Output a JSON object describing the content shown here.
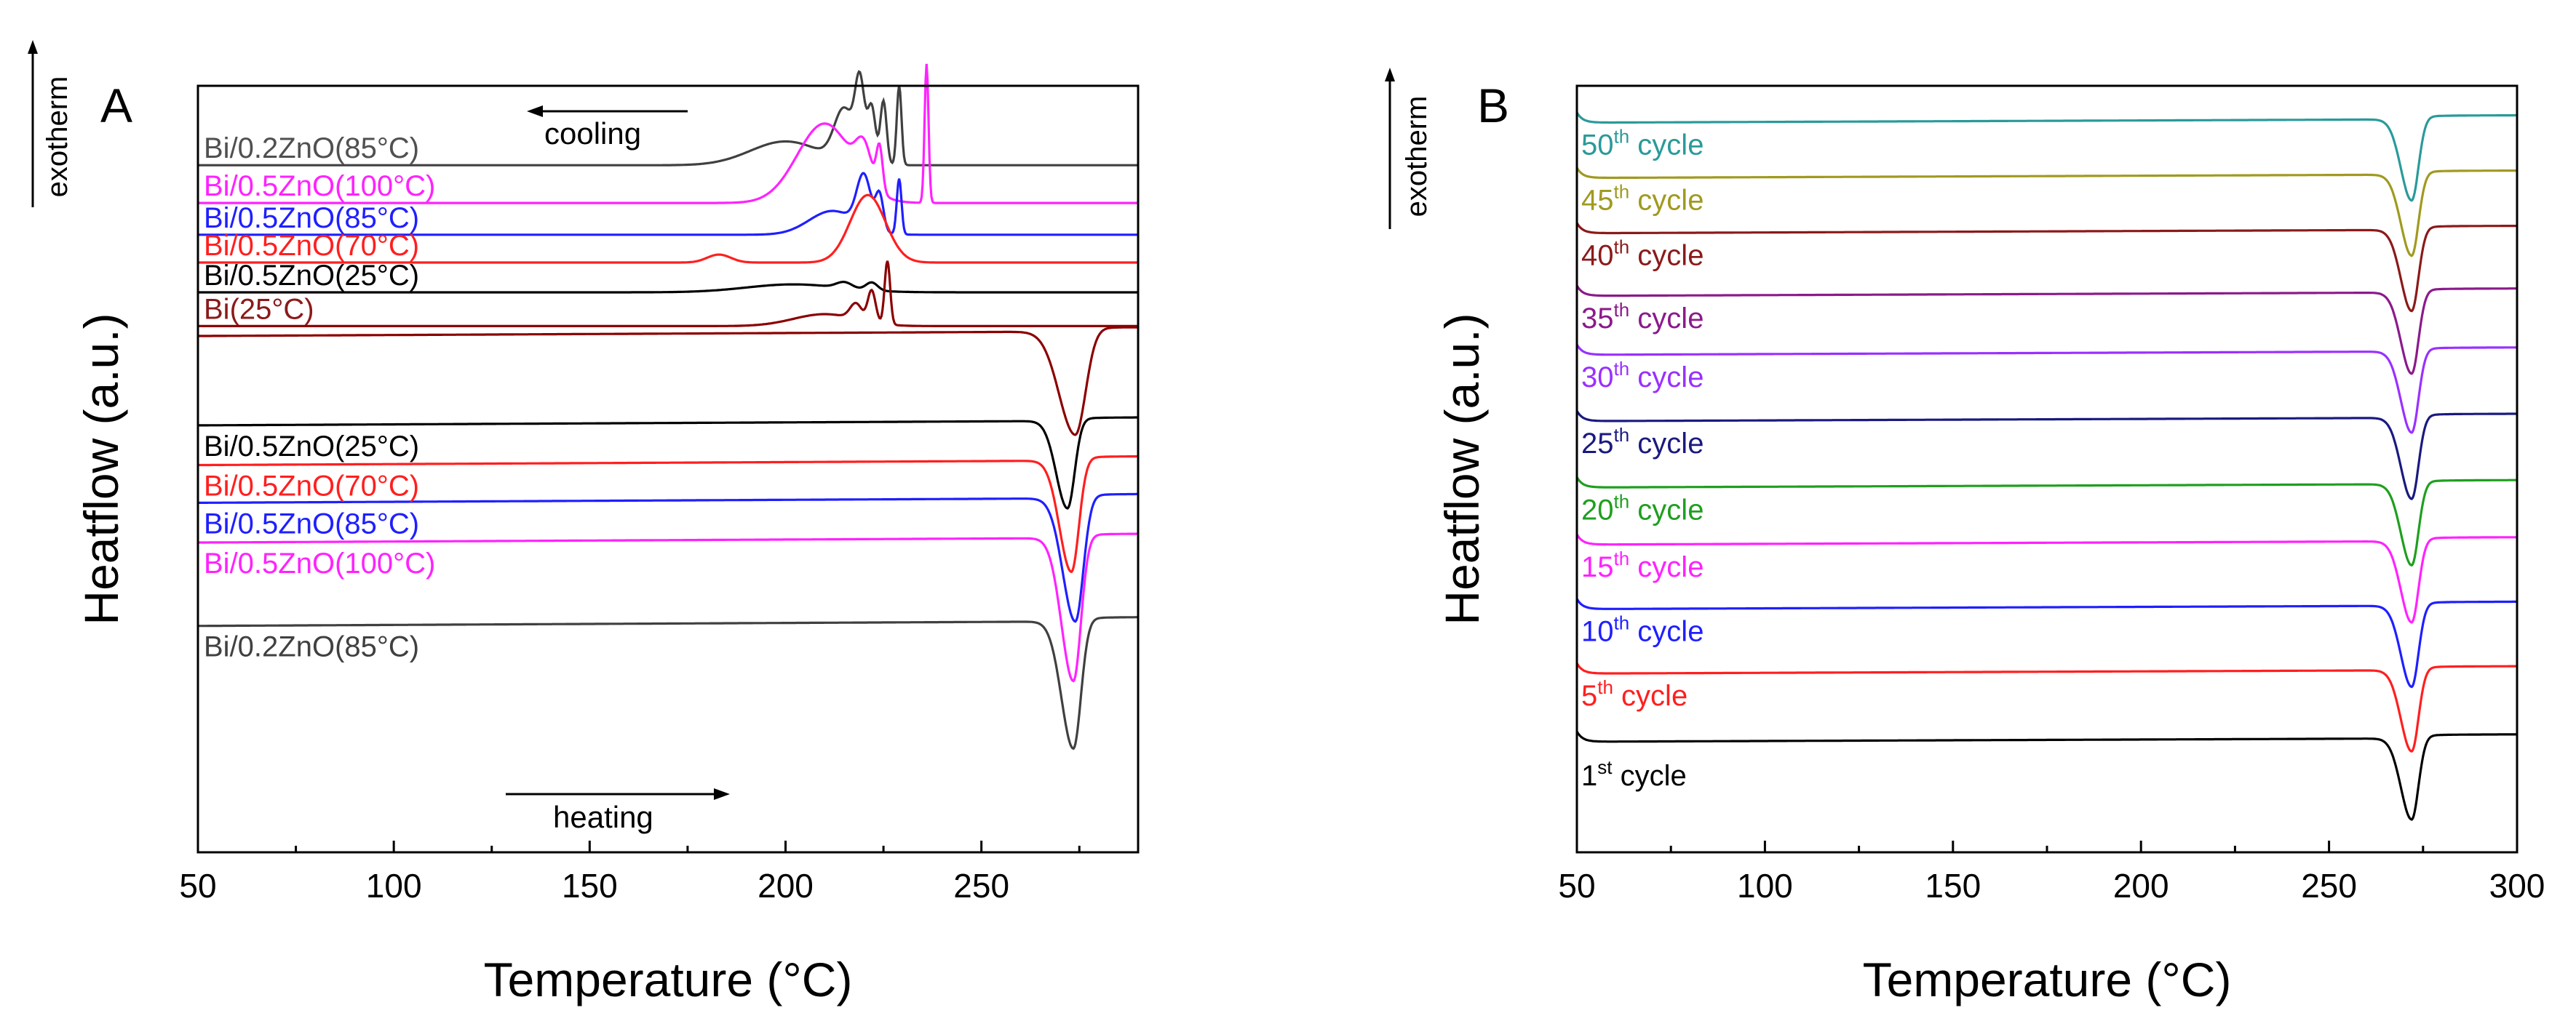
{
  "figure": {
    "panels": [
      "A",
      "B"
    ]
  },
  "chart_data": [
    {
      "type": "line",
      "panel_label": "A",
      "title": "",
      "xlabel": "Temperature (°C)",
      "ylabel": "Heatflow (a.u.)",
      "exotherm_label": "exotherm",
      "xlim": [
        50,
        290
      ],
      "xticks": [
        50,
        100,
        150,
        200,
        250
      ],
      "yticks": "none",
      "grid": false,
      "annotations": [
        {
          "text": "cooling",
          "arrow": "left"
        },
        {
          "text": "heating",
          "arrow": "right"
        }
      ],
      "cooling_curves": [
        {
          "name": "Bi/0.2ZnO(85°C)",
          "color": "#404040",
          "label_color": "#505050",
          "baseline": 6.8,
          "peaks": [
            [
              200,
              0.6,
              9
            ],
            [
              215,
              1.3,
              2.5
            ],
            [
              219,
              1.9,
              1.2
            ],
            [
              222,
              1.4,
              1
            ],
            [
              225,
              1.6,
              0.8
            ],
            [
              229,
              2.0,
              0.6
            ]
          ]
        },
        {
          "name": "Bi/0.5ZnO(100°C)",
          "color": "#ff22ff",
          "label_color": "#ff22ff",
          "baseline": 5.85,
          "peaks": [
            [
              210,
              2.0,
              7
            ],
            [
              220,
              0.9,
              2
            ],
            [
              224,
              1.1,
              0.8
            ],
            [
              236,
              3.5,
              0.5
            ]
          ]
        },
        {
          "name": "Bi/0.5ZnO(85°C)",
          "color": "#1f1fff",
          "label_color": "#1f1fff",
          "baseline": 5.05,
          "peaks": [
            [
              212,
              0.6,
              6
            ],
            [
              220,
              1.3,
              1.8
            ],
            [
              224,
              0.9,
              1
            ],
            [
              229,
              1.4,
              0.6
            ]
          ]
        },
        {
          "name": "Bi/0.5ZnO(70°C)",
          "color": "#ff1f1f",
          "label_color": "#ff1f1f",
          "baseline": 4.35,
          "peaks": [
            [
              183,
              0.2,
              3
            ],
            [
              221,
              1.7,
              4.5
            ]
          ]
        },
        {
          "name": "Bi/0.5ZnO(25°C)",
          "color": "#000000",
          "label_color": "#000000",
          "baseline": 3.6,
          "peaks": [
            [
              202,
              0.2,
              12
            ],
            [
              215,
              0.15,
              2
            ],
            [
              222,
              0.2,
              1.5
            ]
          ]
        },
        {
          "name": "Bi(25°C)",
          "color": "#8b0000",
          "label_color": "#8b1a1a",
          "baseline": 2.75,
          "peaks": [
            [
              210,
              0.3,
              8
            ],
            [
              218,
              0.4,
              1.5
            ],
            [
              222,
              0.8,
              1
            ],
            [
              226,
              1.6,
              0.7
            ]
          ]
        }
      ],
      "heating_curves": [
        {
          "name": "Bi(25°C)",
          "color": "#8b0000",
          "baseline": 2.5,
          "dip": [
            274,
            2.6,
            2.6
          ],
          "end_rise": 0.1
        },
        {
          "name": "Bi/0.5ZnO(25°C)",
          "color": "#000000",
          "baseline": 0.25,
          "dip": [
            272,
            2.2,
            1.8
          ],
          "end_rise": 0.08
        },
        {
          "name": "Bi/0.5ZnO(70°C)",
          "color": "#ff1f1f",
          "baseline": -0.75,
          "dip": [
            273,
            2.8,
            1.9
          ],
          "end_rise": 0.1
        },
        {
          "name": "Bi/0.5ZnO(85°C)",
          "color": "#1f1fff",
          "baseline": -1.7,
          "dip": [
            274,
            3.1,
            2.0
          ],
          "end_rise": 0.1
        },
        {
          "name": "Bi/0.5ZnO(100°C)",
          "color": "#ff22ff",
          "baseline": -2.7,
          "dip": [
            273.5,
            3.6,
            1.9
          ],
          "end_rise": 0.1
        },
        {
          "name": "Bi/0.2ZnO(85°C)",
          "color": "#404040",
          "baseline": -4.8,
          "dip": [
            273.5,
            3.2,
            1.9
          ],
          "end_rise": 0.1
        }
      ]
    },
    {
      "type": "line",
      "panel_label": "B",
      "title": "",
      "xlabel": "Temperature (°C)",
      "ylabel": "Heatflow (a.u.)",
      "exotherm_label": "exotherm",
      "xlim": [
        50,
        300
      ],
      "xticks": [
        50,
        100,
        150,
        200,
        250,
        300
      ],
      "yticks": "none",
      "grid": false,
      "series": [
        {
          "num": "1",
          "sup": "st",
          "word": "cycle",
          "color": "#000000",
          "baseline": 0.4
        },
        {
          "num": "5",
          "sup": "th",
          "word": "cycle",
          "color": "#ff1f1f",
          "baseline": 2.25
        },
        {
          "num": "10",
          "sup": "th",
          "word": "cycle",
          "color": "#1f1fff",
          "baseline": 4.0
        },
        {
          "num": "15",
          "sup": "th",
          "word": "cycle",
          "color": "#ff22ff",
          "baseline": 5.75
        },
        {
          "num": "20",
          "sup": "th",
          "word": "cycle",
          "color": "#1f9f1f",
          "baseline": 7.3
        },
        {
          "num": "25",
          "sup": "th",
          "word": "cycle",
          "color": "#1a1a80",
          "baseline": 9.1
        },
        {
          "num": "30",
          "sup": "th",
          "word": "cycle",
          "color": "#9a30ff",
          "baseline": 10.9
        },
        {
          "num": "35",
          "sup": "th",
          "word": "cycle",
          "color": "#8b1a8b",
          "baseline": 12.5
        },
        {
          "num": "40",
          "sup": "th",
          "word": "cycle",
          "color": "#8b1a1a",
          "baseline": 14.2
        },
        {
          "num": "45",
          "sup": "th",
          "word": "cycle",
          "color": "#a09a20",
          "baseline": 15.7
        },
        {
          "num": "50",
          "sup": "th",
          "word": "cycle",
          "color": "#2a9a9a",
          "baseline": 17.2
        }
      ],
      "dip": {
        "center": 272,
        "width": 1.8,
        "depth": 2.2
      }
    }
  ]
}
